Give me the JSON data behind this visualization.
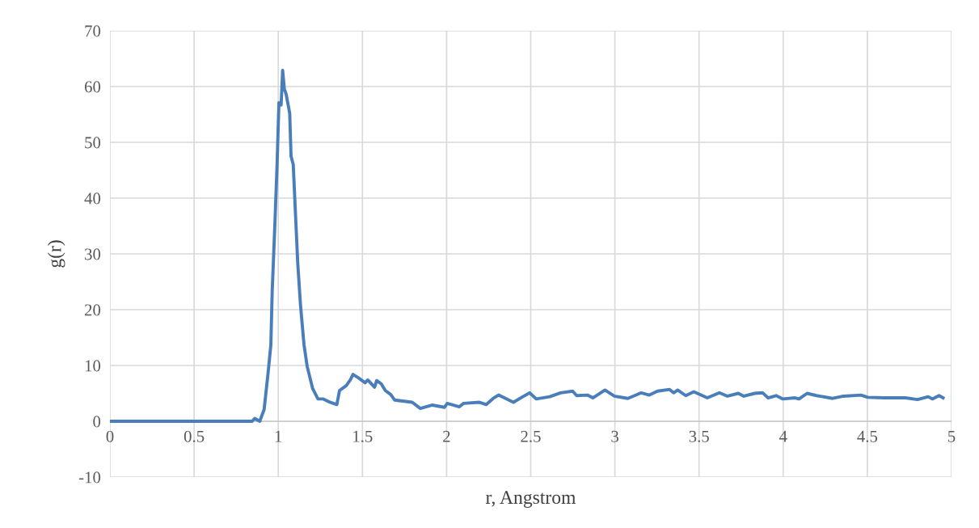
{
  "chart_data": {
    "type": "line",
    "xlabel": "r, Angstrom",
    "ylabel": "g(r)",
    "xlim": [
      0,
      5
    ],
    "xticks": [
      0,
      0.5,
      1,
      1.5,
      2,
      2.5,
      3,
      3.5,
      4,
      4.5,
      5
    ],
    "ylim": [
      -10,
      70
    ],
    "yticks": [
      -10,
      0,
      10,
      20,
      30,
      40,
      50,
      60,
      70
    ],
    "grid": true,
    "marker": "none",
    "line_style": "solid",
    "series": [
      {
        "color": "#4a7ebb",
        "x": [
          0,
          0.2,
          0.4,
          0.6,
          0.8,
          0.845,
          0.86,
          0.89,
          0.916,
          0.94,
          0.956,
          0.964,
          0.98,
          0.993,
          1.004,
          1.017,
          1.026,
          1.036,
          1.047,
          1.068,
          1.076,
          1.089,
          1.105,
          1.116,
          1.132,
          1.153,
          1.172,
          1.204,
          1.236,
          1.268,
          1.3,
          1.348,
          1.364,
          1.404,
          1.428,
          1.444,
          1.475,
          1.516,
          1.532,
          1.572,
          1.585,
          1.612,
          1.636,
          1.668,
          1.692,
          1.796,
          1.844,
          1.916,
          1.988,
          2.004,
          2.076,
          2.1,
          2.196,
          2.236,
          2.277,
          2.309,
          2.397,
          2.453,
          2.493,
          2.533,
          2.613,
          2.677,
          2.749,
          2.773,
          2.837,
          2.869,
          2.941,
          2.997,
          3.077,
          3.157,
          3.205,
          3.253,
          3.325,
          3.349,
          3.373,
          3.421,
          3.469,
          3.549,
          3.621,
          3.669,
          3.733,
          3.766,
          3.83,
          3.878,
          3.91,
          3.958,
          3.998,
          4.07,
          4.094,
          4.142,
          4.198,
          4.294,
          4.358,
          4.462,
          4.502,
          4.598,
          4.726,
          4.798,
          4.862,
          4.886,
          4.926,
          4.95
        ],
        "values": [
          0,
          0,
          0,
          0,
          0,
          0,
          0.5,
          0,
          2.1,
          8.8,
          13.7,
          23.3,
          35.4,
          46,
          57.1,
          56.7,
          62.9,
          59.6,
          58.6,
          55.2,
          47.5,
          46,
          35.4,
          28.2,
          20.9,
          13.7,
          9.8,
          5.9,
          4.0,
          4.0,
          3.5,
          3.0,
          5.5,
          6.4,
          7.4,
          8.4,
          7.8,
          6.9,
          7.4,
          6.1,
          7.3,
          6.7,
          5.5,
          4.8,
          3.8,
          3.4,
          2.3,
          2.9,
          2.5,
          3.2,
          2.6,
          3.2,
          3.4,
          3.0,
          4.1,
          4.7,
          3.4,
          4.4,
          5.1,
          4.0,
          4.4,
          5.1,
          5.4,
          4.6,
          4.7,
          4.2,
          5.6,
          4.5,
          4.1,
          5.1,
          4.7,
          5.4,
          5.7,
          5.1,
          5.6,
          4.6,
          5.3,
          4.2,
          5.1,
          4.5,
          5.0,
          4.5,
          5.0,
          5.1,
          4.2,
          4.6,
          4.0,
          4.2,
          4.0,
          5.0,
          4.6,
          4.1,
          4.5,
          4.7,
          4.3,
          4.2,
          4.2,
          3.9,
          4.4,
          4.0,
          4.6,
          4.2
        ]
      }
    ]
  }
}
